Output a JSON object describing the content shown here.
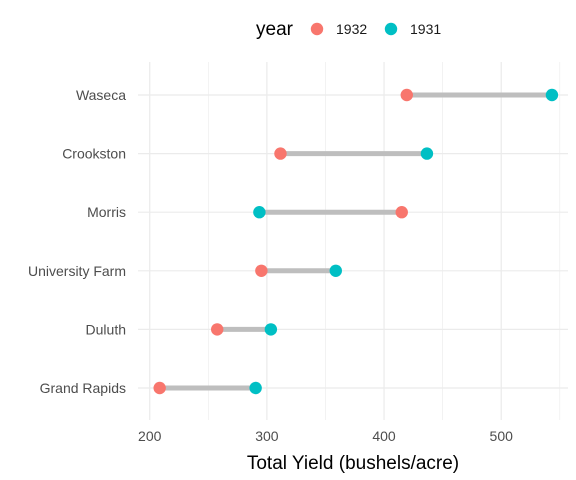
{
  "chart_data": {
    "type": "dumbbell",
    "xlabel": "Total Yield (bushels/acre)",
    "ylabel": "",
    "xlim": [
      190,
      557
    ],
    "xticks": [
      200,
      300,
      400,
      500
    ],
    "grid": true,
    "legend": {
      "title": "year",
      "position": "top",
      "entries": [
        {
          "label": "1932",
          "color": "#F8766D"
        },
        {
          "label": "1931",
          "color": "#00BFC4"
        }
      ]
    },
    "categories": [
      "Waseca",
      "Crookston",
      "Morris",
      "University Farm",
      "Duluth",
      "Grand Rapids"
    ],
    "series": [
      {
        "name": "1932",
        "color": "#F8766D",
        "values": [
          419.4,
          311.6,
          415.1,
          295.3,
          257.6,
          208.5
        ]
      },
      {
        "name": "1931",
        "color": "#00BFC4",
        "values": [
          543.3,
          436.6,
          293.6,
          358.8,
          303.4,
          290.4
        ]
      }
    ],
    "connector_color": "#BEBEBE"
  }
}
